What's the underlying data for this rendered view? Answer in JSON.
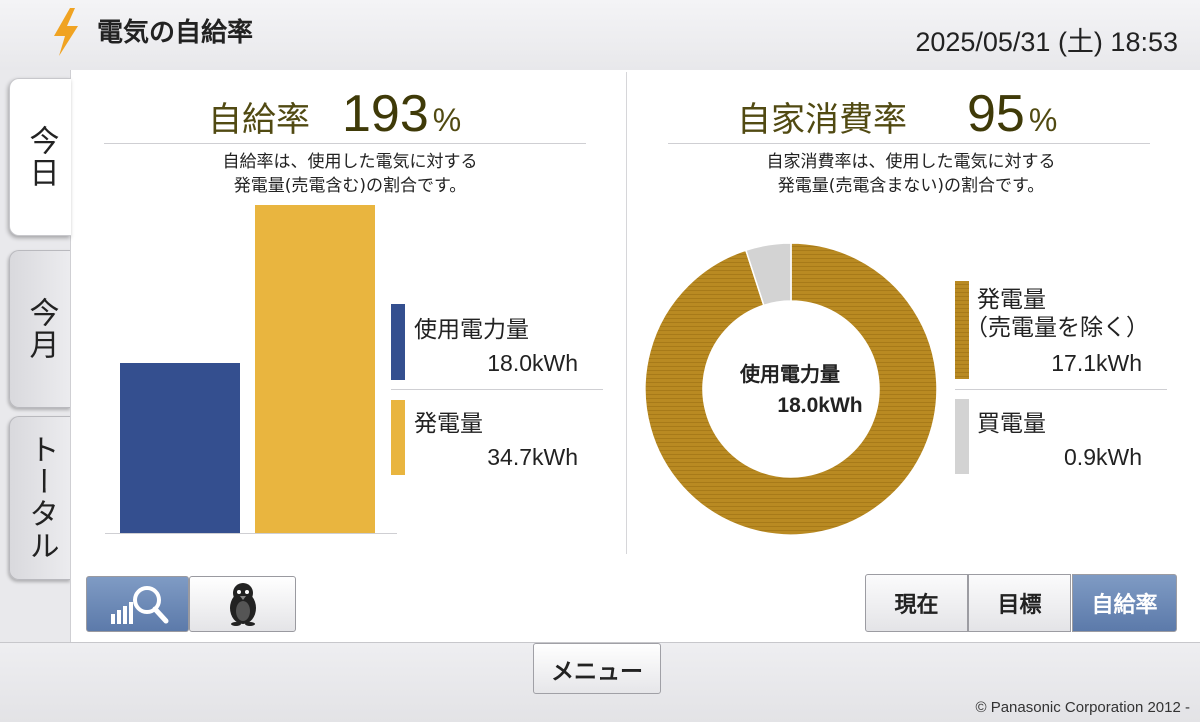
{
  "header": {
    "title": "電気の自給率",
    "datetime": "2025/05/31 (土) 18:53"
  },
  "tabs": [
    {
      "label": "今日",
      "active": true
    },
    {
      "label": "今月",
      "active": false
    },
    {
      "label": "トータル",
      "active": false
    }
  ],
  "self_sufficiency": {
    "label": "自給率",
    "value": "193",
    "unit": "%",
    "description_line1": "自給率は、使用した電気に対する",
    "description_line2": "発電量(売電含む)の割合です。",
    "legend": [
      {
        "label": "使用電力量",
        "value": "18.0kWh",
        "color": "#344f8f"
      },
      {
        "label": "発電量",
        "value": "34.7kWh",
        "color": "#e9b53f"
      }
    ]
  },
  "self_consumption": {
    "label": "自家消費率",
    "value": "95",
    "unit": "%",
    "description_line1": "自家消費率は、使用した電気に対する",
    "description_line2": "発電量(売電含まない)の割合です。",
    "center_label": "使用電力量",
    "center_value": "18.0kWh",
    "legend": [
      {
        "label_line1": "発電量",
        "label_line2": "（売電量を除く）",
        "value": "17.1kWh",
        "color": "#b98a22"
      },
      {
        "label_line1": "買電量",
        "label_line2": "",
        "value": "0.9kWh",
        "color": "#d3d3d3"
      }
    ]
  },
  "chart_data": [
    {
      "type": "bar",
      "categories": [
        "使用電力量",
        "発電量"
      ],
      "values": [
        18.0,
        34.7
      ],
      "colors": [
        "#344f8f",
        "#e9b53f"
      ]
    },
    {
      "type": "pie",
      "categories": [
        "発電量（売電量を除く）",
        "買電量"
      ],
      "values": [
        17.1,
        0.9
      ],
      "colors": [
        "#b98a22",
        "#d3d3d3"
      ]
    }
  ],
  "bottom_left": {
    "buttons": [
      {
        "icon": "chart-magnifier-icon",
        "active": true
      },
      {
        "icon": "penguin-icon",
        "active": false
      }
    ]
  },
  "view_selector": {
    "buttons": [
      {
        "label": "現在",
        "active": false
      },
      {
        "label": "目標",
        "active": false
      },
      {
        "label": "自給率",
        "active": true
      }
    ]
  },
  "footer": {
    "menu_label": "メニュー",
    "copyright": "© Panasonic Corporation 2012 -"
  },
  "colors": {
    "accent_orange": "#f0a322",
    "rate_text": "#514a12",
    "active_button": "#6f8cbb"
  }
}
